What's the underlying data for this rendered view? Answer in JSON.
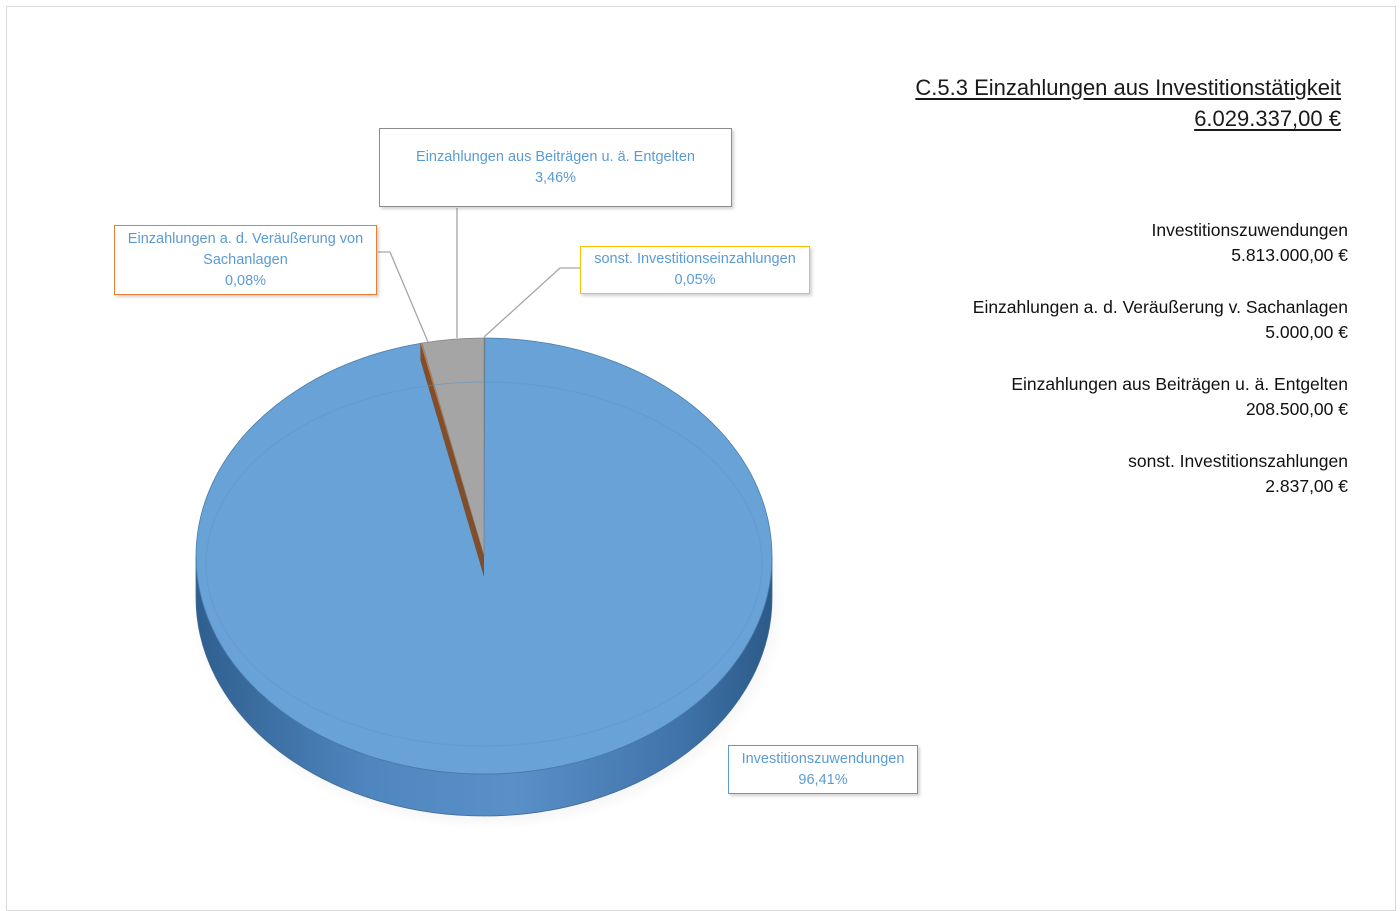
{
  "title": {
    "line1": "C.5.3 Einzahlungen aus Investitionstätigkeit",
    "line2": "6.029.337,00 €"
  },
  "summary": [
    {
      "label": "Investitionszuwendungen",
      "amount": "5.813.000,00 €"
    },
    {
      "label": "Einzahlungen a. d. Veräußerung v. Sachanlagen",
      "amount": "5.000,00 €"
    },
    {
      "label": "Einzahlungen aus Beiträgen u. ä. Entgelten",
      "amount": "208.500,00 €"
    },
    {
      "label": "sonst. Investitionszahlungen",
      "amount": "2.837,00 €"
    }
  ],
  "callouts": {
    "beitraege": {
      "line1": "Einzahlungen aus Beiträgen u. ä. Entgelten",
      "pct": "3,46%"
    },
    "veraeusserung": {
      "line1": "Einzahlungen a. d. Veräußerung von",
      "line2": "Sachanlagen",
      "pct": "0,08%"
    },
    "sonst": {
      "line1": "sonst. Investitionseinzahlungen",
      "pct": "0,05%"
    },
    "zuwendungen": {
      "line1": "Investitionszuwendungen",
      "pct": "96,41%"
    }
  },
  "chart_data": {
    "type": "pie",
    "style": "3d",
    "start": "top",
    "direction": "clockwise",
    "slices": [
      {
        "label": "sonst. Investitionseinzahlungen",
        "value": 2837,
        "percent": 0.05,
        "color": "#ffc000"
      },
      {
        "label": "Investitionszuwendungen",
        "value": 5813000,
        "percent": 96.41,
        "color": "#5b9bd5"
      },
      {
        "label": "Einzahlungen a. d. Veräußerung von Sachanlagen",
        "value": 5000,
        "percent": 0.08,
        "color": "#ed7d31"
      },
      {
        "label": "Einzahlungen aus Beiträgen u. ä. Entgelten",
        "value": 208500,
        "percent": 3.46,
        "color": "#a5a5a5"
      }
    ]
  }
}
